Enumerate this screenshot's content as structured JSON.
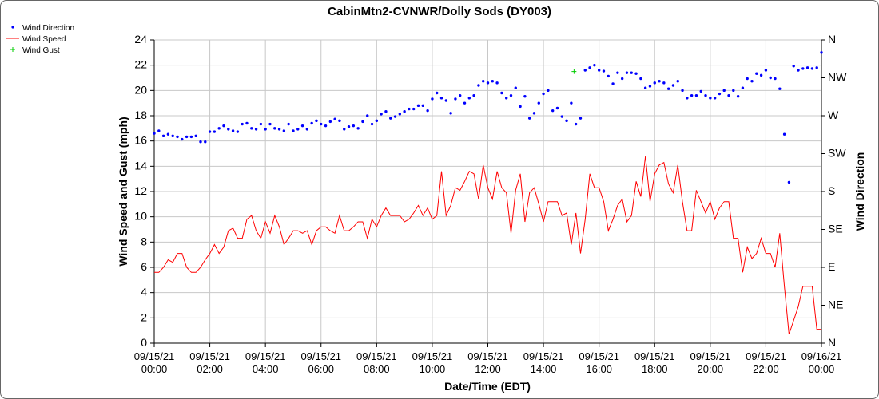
{
  "chart_data": {
    "type": "line",
    "title": "CabinMtn2-CVNWR/Dolly Sods (DY003)",
    "xlabel": "Date/Time (EDT)",
    "ylabel": "Wind Speed and Gust (mph)",
    "y2label": "Wind Direction",
    "ylim": [
      0,
      24
    ],
    "yticks": [
      "0",
      "2",
      "4",
      "6",
      "8",
      "10",
      "12",
      "14",
      "16",
      "18",
      "20",
      "22",
      "24"
    ],
    "y2lim_degrees": [
      0,
      360
    ],
    "y2ticks": [
      "N",
      "NE",
      "E",
      "SE",
      "S",
      "SW",
      "W",
      "NW",
      "N"
    ],
    "xlim_hours": [
      0,
      24
    ],
    "xticks": [
      [
        "09/15/21",
        "00:00"
      ],
      [
        "09/15/21",
        "02:00"
      ],
      [
        "09/15/21",
        "04:00"
      ],
      [
        "09/15/21",
        "06:00"
      ],
      [
        "09/15/21",
        "08:00"
      ],
      [
        "09/15/21",
        "10:00"
      ],
      [
        "09/15/21",
        "12:00"
      ],
      [
        "09/15/21",
        "14:00"
      ],
      [
        "09/15/21",
        "16:00"
      ],
      [
        "09/15/21",
        "18:00"
      ],
      [
        "09/15/21",
        "20:00"
      ],
      [
        "09/15/21",
        "22:00"
      ],
      [
        "09/16/21",
        "00:00"
      ]
    ],
    "grid": true,
    "legend_position": "top-left",
    "interval_minutes": 10,
    "series": [
      {
        "name": "Wind Direction",
        "kind": "points",
        "axis": "right",
        "color": "#0000ff",
        "unit": "degrees",
        "values": [
          249,
          252,
          246,
          248,
          246,
          245,
          242,
          245,
          245,
          246,
          239,
          239,
          251,
          251,
          255,
          258,
          254,
          252,
          251,
          260,
          261,
          255,
          254,
          260,
          254,
          260,
          255,
          254,
          252,
          260,
          252,
          254,
          258,
          254,
          261,
          264,
          260,
          258,
          263,
          266,
          264,
          254,
          257,
          258,
          255,
          263,
          270,
          260,
          264,
          272,
          275,
          267,
          269,
          272,
          275,
          278,
          278,
          282,
          282,
          276,
          290,
          297,
          291,
          288,
          273,
          290,
          294,
          285,
          291,
          294,
          306,
          311,
          309,
          311,
          309,
          297,
          291,
          294,
          303,
          281,
          293,
          267,
          273,
          285,
          296,
          300,
          276,
          279,
          269,
          264,
          285,
          260,
          267,
          324,
          327,
          330,
          324,
          323,
          317,
          308,
          321,
          314,
          321,
          321,
          320,
          314,
          303,
          305,
          309,
          311,
          309,
          302,
          306,
          311,
          300,
          291,
          294,
          294,
          299,
          294,
          291,
          291,
          296,
          300,
          294,
          300,
          293,
          303,
          314,
          311,
          320,
          318,
          324,
          315,
          314,
          302,
          248,
          191,
          329,
          324,
          326,
          327,
          326,
          327,
          345
        ]
      },
      {
        "name": "Wind Speed",
        "kind": "line",
        "axis": "left",
        "color": "#ff0000",
        "unit": "mph",
        "values": [
          5.6,
          5.6,
          6.0,
          6.6,
          6.4,
          7.1,
          7.1,
          6.0,
          5.6,
          5.6,
          6.0,
          6.6,
          7.1,
          7.8,
          7.1,
          7.6,
          8.9,
          9.1,
          8.3,
          8.3,
          9.8,
          10.1,
          8.9,
          8.3,
          9.6,
          8.7,
          10.1,
          9.2,
          7.8,
          8.3,
          8.9,
          8.9,
          8.7,
          8.9,
          7.8,
          8.9,
          9.2,
          9.2,
          8.9,
          8.7,
          10.1,
          8.9,
          8.9,
          9.2,
          9.6,
          9.6,
          8.3,
          9.8,
          9.2,
          10.1,
          10.7,
          10.1,
          10.1,
          10.1,
          9.6,
          9.8,
          10.3,
          10.9,
          10.1,
          10.7,
          9.8,
          10.1,
          13.6,
          10.1,
          10.9,
          12.3,
          12.1,
          12.8,
          13.6,
          13.4,
          11.4,
          14.1,
          12.3,
          11.4,
          13.6,
          12.3,
          11.9,
          8.7,
          12.1,
          13.4,
          9.6,
          11.9,
          12.3,
          11.0,
          9.6,
          11.2,
          11.2,
          11.2,
          10.1,
          10.3,
          7.8,
          10.3,
          7.1,
          9.8,
          13.4,
          12.3,
          12.3,
          11.2,
          8.9,
          9.8,
          10.9,
          11.4,
          9.6,
          10.1,
          12.8,
          11.6,
          14.8,
          11.2,
          13.4,
          14.1,
          14.3,
          12.6,
          11.9,
          14.1,
          11.2,
          8.9,
          8.9,
          12.1,
          11.2,
          10.3,
          11.2,
          9.8,
          10.7,
          11.2,
          11.2,
          8.3,
          8.3,
          5.6,
          7.6,
          6.7,
          7.1,
          8.3,
          7.1,
          7.1,
          6.0,
          8.7,
          4.5,
          0.7,
          1.8,
          2.9,
          4.5,
          4.5,
          4.5,
          1.1,
          1.1
        ]
      },
      {
        "name": "Wind Gust",
        "kind": "points",
        "axis": "left",
        "color": "#00cc00",
        "unit": "mph",
        "points": [
          {
            "hour": 15.1,
            "value": 21.5
          }
        ]
      }
    ]
  }
}
